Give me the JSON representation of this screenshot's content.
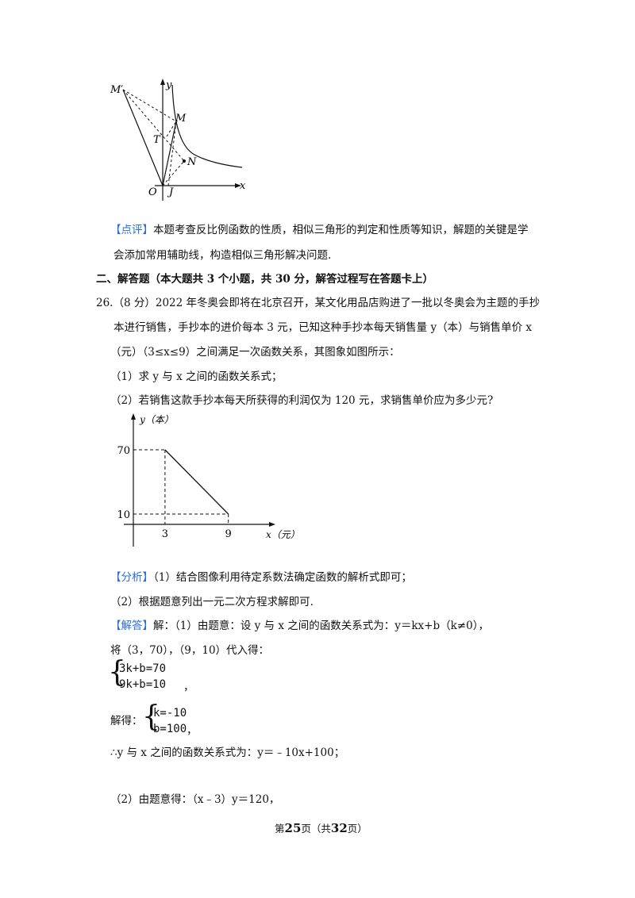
{
  "figure1": {
    "labels": {
      "M_prime": "M′",
      "y": "y",
      "M": "M",
      "T": "T",
      "N": "N",
      "O": "O",
      "J": "J",
      "x": "x"
    }
  },
  "comment": {
    "tag": "【点评】",
    "line1": "本题考查反比例函数的性质，相似三角形的判定和性质等知识，解题的关键是学",
    "line2": "会添加常用辅助线，构造相似三角形解决问题."
  },
  "section2": {
    "title": "二、解答题（本大题共 3 个小题，共 30 分，解答过程写在答题卡上）"
  },
  "q26": {
    "line1": "26.（8 分）2022 年冬奥会即将在北京召开，某文化用品店购进了一批以冬奥会为主题的手抄",
    "line2": "本进行销售，手抄本的进价每本 3 元，已知这种手抄本每天销售量 y（本）与销售单价 x",
    "line3": "（元）（3≤x≤9）之间满足一次函数关系，其图象如图所示：",
    "part1": "（1）求 y 与 x 之间的函数关系式；",
    "part2": "（2）若销售这款手抄本每天所获得的利润仅为 120 元，求销售单价应为多少元?"
  },
  "chart_data": {
    "type": "line",
    "x": [
      3,
      9
    ],
    "y": [
      70,
      10
    ],
    "xlabel": "x（元）",
    "ylabel": "y（本）",
    "x_ticks": [
      "3",
      "9"
    ],
    "y_ticks": [
      "70",
      "10"
    ],
    "dashed_guides": true
  },
  "analysis": {
    "tag": "【分析】",
    "line1": "（1）结合图像利用待定系数法确定函数的解析式即可；",
    "line2": "（2）根据题意列出一元二次方程求解即可."
  },
  "answer": {
    "tag": "【解答】",
    "line1": "解：（1）由题意：设 y 与 x 之间的函数关系式为：y＝kx+b（k≠0），",
    "line2": "将（3，70），（9，10）代入得：",
    "sys1_a": "3k+b=70",
    "sys1_b": "9k+b=10",
    "sys1_end": "，",
    "solve_label": "解得：",
    "sys2_a": "k=-10",
    "sys2_b": "b=100",
    "sys2_end": "，",
    "conclusion": "∴y 与 x 之间的函数关系式为：y＝﹣10x+100；",
    "part2": "（2）由题意得：（x﹣3）y＝120，"
  },
  "footer": {
    "pre": "第",
    "page": "25",
    "mid": "页（共",
    "total": "32",
    "post": "页）"
  }
}
